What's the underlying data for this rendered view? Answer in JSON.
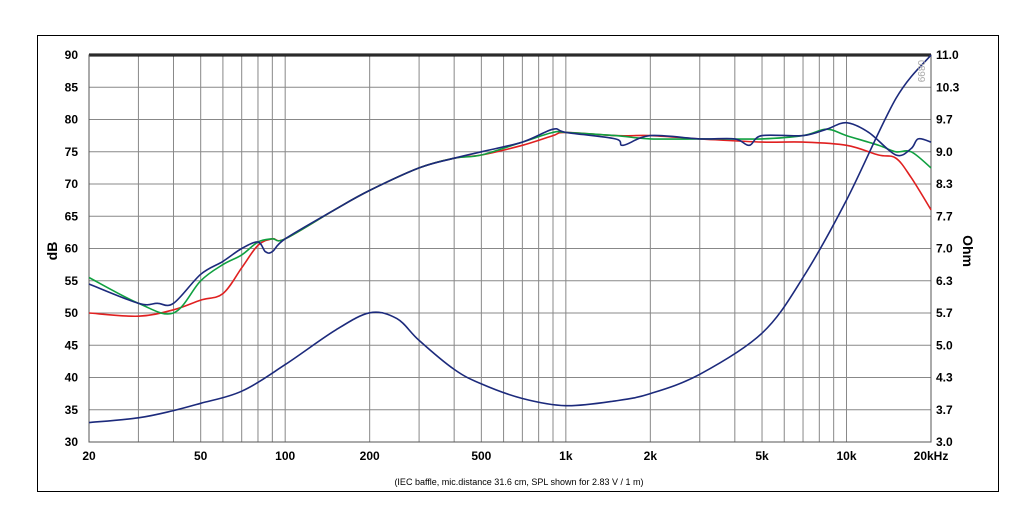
{
  "chart_data": {
    "type": "line",
    "xscale": "log",
    "xlim": [
      20,
      20000
    ],
    "ylim_left": [
      30,
      90
    ],
    "ylim_right": [
      3.0,
      11.0
    ],
    "ylabel_left": "dB",
    "ylabel_right": "Ohm",
    "caption": "(IEC baffle, mic.distance 31.6 cm, SPL shown for 2.83 V / 1 m)",
    "watermark": "0899",
    "grid": true,
    "x_ticks": [
      {
        "value": 20,
        "label": "20"
      },
      {
        "value": 50,
        "label": "50"
      },
      {
        "value": 100,
        "label": "100"
      },
      {
        "value": 200,
        "label": "200"
      },
      {
        "value": 500,
        "label": "500"
      },
      {
        "value": 1000,
        "label": "1k"
      },
      {
        "value": 2000,
        "label": "2k"
      },
      {
        "value": 5000,
        "label": "5k"
      },
      {
        "value": 10000,
        "label": "10k"
      },
      {
        "value": 20000,
        "label": "20kHz"
      }
    ],
    "y_ticks_left": [
      "30",
      "35",
      "40",
      "45",
      "50",
      "55",
      "60",
      "65",
      "70",
      "75",
      "80",
      "85",
      "90"
    ],
    "y_ticks_right": [
      "3.0",
      "3.7",
      "4.3",
      "5.0",
      "5.7",
      "6.3",
      "7.0",
      "7.7",
      "8.3",
      "9.0",
      "9.7",
      "10.3",
      "11.0"
    ],
    "series": [
      {
        "axis": "left",
        "color": "#e02020",
        "x": [
          20,
          30,
          40,
          50,
          60,
          70,
          80,
          90,
          100,
          150,
          200,
          300,
          400,
          500,
          700,
          900,
          1000,
          1500,
          2000,
          3000,
          5000,
          7000,
          10000,
          13000,
          15000,
          17000,
          20000
        ],
        "y": [
          50,
          49.5,
          50.5,
          52,
          53,
          57,
          60.5,
          61.5,
          61.5,
          66,
          69,
          72.5,
          74,
          74.5,
          76,
          77.5,
          78,
          77.5,
          77.5,
          77,
          76.5,
          76.5,
          76,
          74.5,
          74,
          71,
          66
        ]
      },
      {
        "axis": "left",
        "color": "#10a040",
        "x": [
          20,
          30,
          40,
          50,
          60,
          70,
          80,
          90,
          100,
          150,
          200,
          300,
          400,
          500,
          700,
          900,
          1000,
          1500,
          2000,
          3000,
          5000,
          7000,
          8500,
          10000,
          13000,
          15000,
          17000,
          20000
        ],
        "y": [
          55.5,
          51.5,
          50,
          55,
          57.5,
          59,
          61,
          61.5,
          61.5,
          66,
          69,
          72.5,
          74,
          74.5,
          76.5,
          78,
          78,
          77.5,
          77,
          77,
          77,
          77.5,
          78.5,
          77.5,
          76,
          75,
          75,
          72.5
        ]
      },
      {
        "axis": "left",
        "color": "#1c2a7c",
        "x": [
          20,
          30,
          35,
          40,
          50,
          60,
          70,
          80,
          85,
          90,
          100,
          150,
          200,
          300,
          400,
          500,
          700,
          900,
          1000,
          1500,
          1600,
          2000,
          3000,
          4000,
          4500,
          5000,
          7000,
          8500,
          10000,
          12000,
          15000,
          17000,
          18000,
          20000
        ],
        "y": [
          54.5,
          51.5,
          51.5,
          51.5,
          56,
          58,
          60,
          61,
          59.5,
          59.5,
          61.5,
          66,
          69,
          72.5,
          74,
          75,
          76.5,
          78.5,
          78,
          77,
          76,
          77.5,
          77,
          77,
          76,
          77.5,
          77.5,
          78.5,
          79.5,
          78,
          74.5,
          75.5,
          77,
          76.5
        ]
      },
      {
        "axis": "right",
        "color": "#1c2a7c",
        "x": [
          20,
          30,
          40,
          50,
          70,
          100,
          150,
          200,
          250,
          300,
          400,
          500,
          700,
          1000,
          1500,
          2000,
          3000,
          5000,
          7000,
          10000,
          15000,
          20000
        ],
        "y": [
          3.4,
          3.5,
          3.65,
          3.8,
          4.05,
          4.6,
          5.3,
          5.67,
          5.55,
          5.1,
          4.5,
          4.2,
          3.9,
          3.75,
          3.85,
          4.0,
          4.4,
          5.25,
          6.4,
          8.0,
          10.1,
          11.0
        ]
      }
    ]
  }
}
